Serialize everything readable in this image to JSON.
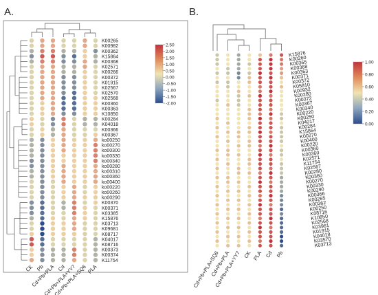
{
  "chart_data": [
    {
      "type": "heatmap",
      "panel_label": "A.",
      "columns": [
        "CK",
        "Pb",
        "Cd+Pb+PLA",
        "Cd",
        "Cd+Pb+PLA+YY7",
        "Cd+Pb+PLA+SQ6",
        "PLA"
      ],
      "rows": [
        "K00265",
        "K00982",
        "K00362",
        "K15864",
        "K00368",
        "K02571",
        "K00266",
        "K00372",
        "K01915",
        "K02567",
        "K02570",
        "K02568",
        "K00360",
        "K00363",
        "K10850",
        "K00284",
        "K04018",
        "K00366",
        "K00367",
        "ko00250",
        "ko00270",
        "ko00300",
        "ko00330",
        "ko00340",
        "ko00280",
        "ko00310",
        "ko00360",
        "ko00400",
        "ko00220",
        "ko00260",
        "ko00290",
        "K00370",
        "K00371",
        "K03385",
        "K15876",
        "K03713",
        "K09681",
        "K08717",
        "K04017",
        "K08716",
        "K00373",
        "K00374",
        "K11754"
      ],
      "values": [
        [
          0.0,
          1.0,
          1.0,
          0.0,
          0.0,
          1.0,
          0.0
        ],
        [
          0.0,
          1.0,
          1.0,
          0.0,
          0.0,
          1.0,
          0.0
        ],
        [
          -0.5,
          1.5,
          1.5,
          -0.5,
          -0.5,
          0.5,
          -1.0
        ],
        [
          -1.0,
          2.0,
          2.0,
          -1.0,
          -1.5,
          0.5,
          -0.5
        ],
        [
          -0.5,
          1.5,
          1.5,
          -1.0,
          -1.0,
          1.0,
          -0.5
        ],
        [
          0.0,
          1.0,
          1.0,
          -0.5,
          -0.5,
          1.0,
          0.0
        ],
        [
          0.0,
          1.0,
          1.0,
          -0.5,
          -0.5,
          0.5,
          0.0
        ],
        [
          0.0,
          1.0,
          1.0,
          -1.0,
          -1.0,
          0.5,
          0.0
        ],
        [
          0.0,
          1.0,
          1.0,
          -1.0,
          -1.0,
          0.5,
          0.0
        ],
        [
          0.0,
          1.0,
          1.0,
          -1.0,
          -1.0,
          0.5,
          0.0
        ],
        [
          0.0,
          1.0,
          1.0,
          -1.0,
          -1.5,
          0.5,
          0.0
        ],
        [
          0.0,
          1.0,
          1.0,
          -1.5,
          -1.5,
          0.5,
          0.5
        ],
        [
          0.0,
          0.5,
          1.0,
          -1.5,
          -1.5,
          0.5,
          0.5
        ],
        [
          0.0,
          0.5,
          1.0,
          -1.5,
          -1.5,
          0.5,
          0.5
        ],
        [
          0.0,
          0.5,
          1.0,
          -1.0,
          -1.0,
          0.5,
          0.5
        ],
        [
          0.5,
          0.0,
          -1.0,
          1.5,
          0.0,
          -0.5,
          -0.5
        ],
        [
          0.5,
          0.0,
          -1.0,
          1.5,
          0.0,
          -0.5,
          -0.5
        ],
        [
          0.0,
          0.5,
          -0.5,
          1.0,
          0.0,
          0.0,
          0.0
        ],
        [
          0.0,
          0.5,
          -0.5,
          1.0,
          0.0,
          0.0,
          0.5
        ],
        [
          -0.5,
          -1.0,
          0.5,
          1.0,
          0.5,
          0.5,
          1.0
        ],
        [
          -0.5,
          -1.0,
          0.5,
          1.0,
          0.5,
          0.5,
          1.5
        ],
        [
          -0.5,
          -1.0,
          0.5,
          1.0,
          0.5,
          0.5,
          1.5
        ],
        [
          -0.5,
          -1.0,
          0.5,
          0.5,
          0.5,
          0.5,
          1.5
        ],
        [
          -1.0,
          -1.0,
          0.5,
          0.5,
          0.5,
          0.5,
          1.5
        ],
        [
          -1.0,
          -1.0,
          0.5,
          1.0,
          0.5,
          0.5,
          1.0
        ],
        [
          -0.5,
          -1.0,
          0.5,
          1.0,
          0.5,
          0.5,
          1.0
        ],
        [
          -0.5,
          -1.0,
          0.5,
          1.0,
          0.5,
          0.5,
          1.0
        ],
        [
          0.0,
          -1.0,
          0.0,
          1.0,
          0.5,
          0.5,
          1.0
        ],
        [
          0.0,
          -1.0,
          0.0,
          0.5,
          1.0,
          0.0,
          0.5
        ],
        [
          0.0,
          -1.0,
          0.0,
          0.5,
          1.0,
          0.0,
          0.5
        ],
        [
          0.0,
          -1.0,
          0.0,
          0.5,
          1.0,
          0.5,
          0.5
        ],
        [
          -1.0,
          -1.5,
          0.0,
          -0.5,
          1.5,
          0.0,
          0.5
        ],
        [
          -1.0,
          -1.5,
          0.0,
          -0.5,
          1.5,
          0.5,
          0.0
        ],
        [
          -1.0,
          -1.5,
          0.0,
          0.0,
          1.5,
          0.5,
          0.0
        ],
        [
          -0.5,
          -1.5,
          0.5,
          0.0,
          1.0,
          0.5,
          0.0
        ],
        [
          0.0,
          -2.0,
          0.5,
          0.5,
          1.0,
          0.0,
          0.0
        ],
        [
          0.0,
          -2.0,
          0.5,
          0.5,
          1.0,
          0.0,
          0.0
        ],
        [
          0.5,
          -2.0,
          0.5,
          0.5,
          0.5,
          0.0,
          0.0
        ],
        [
          2.0,
          -1.5,
          0.0,
          0.0,
          0.0,
          0.0,
          -0.5
        ],
        [
          2.0,
          -1.5,
          0.0,
          0.0,
          0.0,
          0.0,
          -0.5
        ],
        [
          0.5,
          -1.0,
          -0.5,
          -0.5,
          1.5,
          0.0,
          -0.5
        ],
        [
          0.5,
          -1.0,
          -0.5,
          -0.5,
          1.5,
          0.0,
          -0.5
        ],
        [
          1.0,
          -1.0,
          -0.5,
          -0.5,
          1.0,
          0.0,
          -0.5
        ]
      ],
      "colorbar": {
        "min": -2.0,
        "max": 2.5,
        "ticks": [
          "2.50",
          "2.00",
          "1.50",
          "1.00",
          "0.50",
          "0.00",
          "-0.50",
          "-1.00",
          "-1.50",
          "-2.00"
        ]
      },
      "colors": {
        "low": "#2b4d8c",
        "mid": "#f1e4b0",
        "high": "#c0333a"
      }
    },
    {
      "type": "heatmap",
      "panel_label": "B.",
      "columns": [
        "Cd+Pb+PLA+SQ6",
        "Cd+Pb+PLA",
        "Cd+Pb+PLA+YY7",
        "CK",
        "PLA",
        "Cd",
        "Pb"
      ],
      "rows": [
        "K15876",
        "K00260",
        "K00365",
        "K00368",
        "K00363",
        "K00371",
        "K00372",
        "K05810",
        "K00932",
        "K00280",
        "K00372",
        "K00367",
        "K00340",
        "K00220",
        "K00250",
        "K04017",
        "K00284",
        "K15864",
        "K00270",
        "K00400",
        "K00220",
        "K00360",
        "K00360",
        "K02571",
        "K11754",
        "K02567",
        "K00280",
        "K00360",
        "K00270",
        "K00330",
        "K00290",
        "K00366",
        "K00265",
        "K00362",
        "K00250",
        "K08716",
        "K10850",
        "K02568",
        "K03961",
        "K01915",
        "K04018",
        "K03570",
        "K03713"
      ],
      "values": [
        [
          0.4,
          0.5,
          0.3,
          0.5,
          0.6,
          0.8,
          0.9
        ],
        [
          0.4,
          0.5,
          0.3,
          0.5,
          0.9,
          1.0,
          0.8
        ],
        [
          0.4,
          0.5,
          0.3,
          0.4,
          0.9,
          1.0,
          0.8
        ],
        [
          0.5,
          0.4,
          0.3,
          0.5,
          0.9,
          1.0,
          0.7
        ],
        [
          0.4,
          0.4,
          0.2,
          0.4,
          1.0,
          0.9,
          0.7
        ],
        [
          0.5,
          0.5,
          0.2,
          0.6,
          0.9,
          1.0,
          0.6
        ],
        [
          0.4,
          0.4,
          0.5,
          0.6,
          0.9,
          0.9,
          0.5
        ],
        [
          0.5,
          0.4,
          0.5,
          0.5,
          0.8,
          0.9,
          0.6
        ],
        [
          0.5,
          0.5,
          0.6,
          0.5,
          0.8,
          1.0,
          0.5
        ],
        [
          0.5,
          0.5,
          0.4,
          0.6,
          1.0,
          0.8,
          0.5
        ],
        [
          0.4,
          0.5,
          0.4,
          0.5,
          0.9,
          0.9,
          0.5
        ],
        [
          0.5,
          0.6,
          0.4,
          0.5,
          0.9,
          0.9,
          0.5
        ],
        [
          0.5,
          0.5,
          0.5,
          0.6,
          0.9,
          0.8,
          0.5
        ],
        [
          0.5,
          0.5,
          0.5,
          0.6,
          0.8,
          1.0,
          0.4
        ],
        [
          0.6,
          0.5,
          0.5,
          0.6,
          1.0,
          0.8,
          0.4
        ],
        [
          0.5,
          0.6,
          0.5,
          0.5,
          0.9,
          0.9,
          0.5
        ],
        [
          0.6,
          0.5,
          0.5,
          0.6,
          0.9,
          0.9,
          0.4
        ],
        [
          0.5,
          0.6,
          0.6,
          0.6,
          1.0,
          0.8,
          0.4
        ],
        [
          0.6,
          0.5,
          0.6,
          0.5,
          0.9,
          0.9,
          0.4
        ],
        [
          0.5,
          0.6,
          0.5,
          0.6,
          0.9,
          0.9,
          0.4
        ],
        [
          0.5,
          0.5,
          0.6,
          0.6,
          0.8,
          1.0,
          0.5
        ],
        [
          0.6,
          0.6,
          0.5,
          0.5,
          0.9,
          0.9,
          0.4
        ],
        [
          0.5,
          0.6,
          0.6,
          0.5,
          1.0,
          0.8,
          0.4
        ],
        [
          0.6,
          0.5,
          0.5,
          0.6,
          0.9,
          0.9,
          0.5
        ],
        [
          0.5,
          0.6,
          0.5,
          0.6,
          0.9,
          0.9,
          0.4
        ],
        [
          0.6,
          0.5,
          0.6,
          0.5,
          0.9,
          0.8,
          0.4
        ],
        [
          0.5,
          0.5,
          0.6,
          0.6,
          0.8,
          1.0,
          0.4
        ],
        [
          0.6,
          0.6,
          0.5,
          0.5,
          0.9,
          0.9,
          0.3
        ],
        [
          0.5,
          0.6,
          0.6,
          0.5,
          1.0,
          0.8,
          0.3
        ],
        [
          0.6,
          0.5,
          0.5,
          0.6,
          0.9,
          0.9,
          0.3
        ],
        [
          0.5,
          0.6,
          0.6,
          0.5,
          0.9,
          0.9,
          0.3
        ],
        [
          0.6,
          0.5,
          0.5,
          0.6,
          0.8,
          1.0,
          0.2
        ],
        [
          0.5,
          0.6,
          0.6,
          0.5,
          0.9,
          0.9,
          0.2
        ],
        [
          0.6,
          0.5,
          0.5,
          0.6,
          1.0,
          0.8,
          0.2
        ],
        [
          0.5,
          0.6,
          0.6,
          0.5,
          0.9,
          0.9,
          0.1
        ],
        [
          0.6,
          0.5,
          0.5,
          0.6,
          0.9,
          0.9,
          0.2
        ],
        [
          0.5,
          0.6,
          0.6,
          0.5,
          0.8,
          1.0,
          0.1
        ],
        [
          0.6,
          0.5,
          0.5,
          0.6,
          0.9,
          0.9,
          0.1
        ],
        [
          0.5,
          0.6,
          0.6,
          0.5,
          1.0,
          0.8,
          0.1
        ],
        [
          0.6,
          0.5,
          0.5,
          0.6,
          0.9,
          0.9,
          0.1
        ],
        [
          0.5,
          0.6,
          0.6,
          0.5,
          0.9,
          0.9,
          0.0
        ],
        [
          0.6,
          0.5,
          0.5,
          0.6,
          0.8,
          1.0,
          0.0
        ],
        [
          0.5,
          0.6,
          0.6,
          0.5,
          0.9,
          0.9,
          0.1
        ]
      ],
      "colorbar": {
        "min": 0.0,
        "max": 1.0,
        "ticks": [
          "1.00",
          "0.80",
          "0.60",
          "0.40",
          "0.20",
          "0.00"
        ]
      },
      "colors": {
        "low": "#2b4d8c",
        "mid": "#f1e4b0",
        "high": "#c0333a"
      }
    }
  ]
}
